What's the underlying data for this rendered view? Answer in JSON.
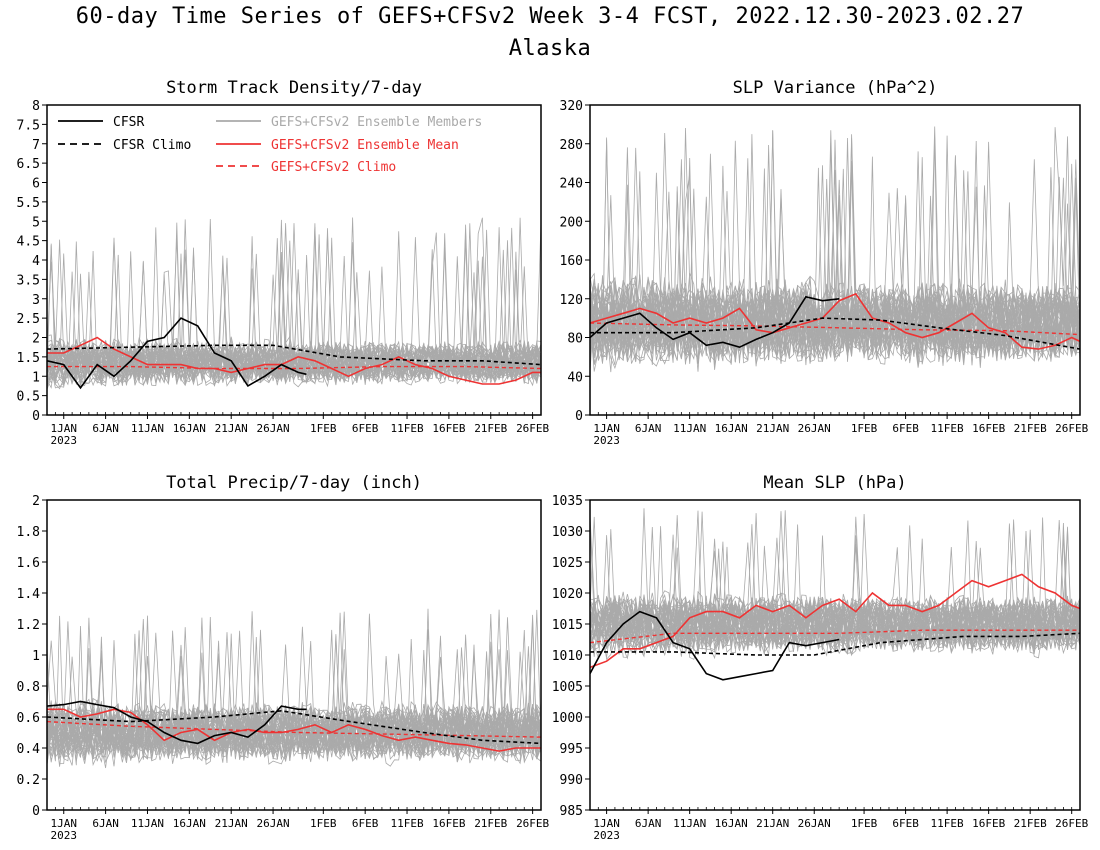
{
  "figure": {
    "title_line1": "60-day Time Series of GEFS+CFSv2 Week 3-4 FCST, 2022.12.30-2023.02.27",
    "title_line2": "Alaska"
  },
  "colors": {
    "cfsr": "#000000",
    "members": "#aaaaaa",
    "ens_mean": "#ee3333",
    "model_climo": "#ee3333"
  },
  "legend": {
    "items": [
      {
        "label": "CFSR",
        "style": "solid",
        "color": "#000000"
      },
      {
        "label": "CFSR Climo",
        "style": "dashed",
        "color": "#000000"
      },
      {
        "label": "GEFS+CFSv2 Ensemble Members",
        "style": "solid",
        "color": "#aaaaaa"
      },
      {
        "label": "GEFS+CFSv2 Ensemble Mean",
        "style": "solid",
        "color": "#ee3333"
      },
      {
        "label": "GEFS+CFSv2 Climo",
        "style": "dashed",
        "color": "#ee3333"
      }
    ],
    "placement": "top-left of first panel"
  },
  "chart_data": [
    {
      "type": "line",
      "title": "Storm Track Density/7-day",
      "xlabel": "",
      "ylabel": "",
      "x_tick_labels": [
        "1JAN",
        "6JAN",
        "11JAN",
        "16JAN",
        "21JAN",
        "26JAN",
        "1FEB",
        "6FEB",
        "11FEB",
        "16FEB",
        "21FEB",
        "26FEB"
      ],
      "x_tick_days": [
        2,
        7,
        12,
        17,
        22,
        27,
        33,
        38,
        43,
        48,
        53,
        58
      ],
      "year_label": "2023",
      "xlim": [
        0,
        59
      ],
      "ylim": [
        0,
        8
      ],
      "y_ticks": [
        0,
        0.5,
        1,
        1.5,
        2,
        2.5,
        3,
        3.5,
        4,
        4.5,
        5,
        5.5,
        6,
        6.5,
        7,
        7.5,
        8
      ],
      "y_tick_labels": [
        "0",
        "0.5",
        "1",
        "1.5",
        "2",
        "2.5",
        "3",
        "3.5",
        "4",
        "4.5",
        "5",
        "5.5",
        "6",
        "6.5",
        "7",
        "7.5",
        "8"
      ],
      "members": {
        "count": 40,
        "center": 1.35,
        "spread": 0.6,
        "peak": 5.1,
        "floor": 0,
        "seed": 11
      },
      "series": [
        {
          "name": "CFSR",
          "x": [
            0,
            2,
            4,
            6,
            8,
            10,
            12,
            14,
            16,
            18,
            20,
            22,
            24,
            26,
            28,
            30,
            31
          ],
          "values": [
            1.4,
            1.3,
            0.7,
            1.3,
            1.0,
            1.4,
            1.9,
            2.0,
            2.5,
            2.3,
            1.6,
            1.4,
            0.75,
            1.0,
            1.3,
            1.1,
            1.05
          ]
        },
        {
          "name": "CFSR Climo",
          "x": [
            0,
            10,
            20,
            27,
            35,
            45,
            52,
            59
          ],
          "values": [
            1.7,
            1.75,
            1.8,
            1.8,
            1.5,
            1.4,
            1.4,
            1.3
          ]
        },
        {
          "name": "GEFS+CFSv2 Ensemble Mean",
          "x": [
            0,
            2,
            4,
            6,
            8,
            10,
            12,
            14,
            16,
            18,
            20,
            22,
            24,
            26,
            28,
            30,
            32,
            34,
            36,
            38,
            40,
            42,
            44,
            46,
            48,
            50,
            52,
            54,
            56,
            58,
            59
          ],
          "values": [
            1.6,
            1.6,
            1.8,
            2.0,
            1.7,
            1.5,
            1.3,
            1.3,
            1.3,
            1.2,
            1.2,
            1.1,
            1.2,
            1.3,
            1.3,
            1.5,
            1.4,
            1.2,
            1.0,
            1.2,
            1.3,
            1.5,
            1.3,
            1.2,
            1.0,
            0.9,
            0.8,
            0.8,
            0.9,
            1.1,
            1.1
          ]
        },
        {
          "name": "GEFS+CFSv2 Climo",
          "x": [
            0,
            10,
            20,
            30,
            40,
            50,
            59
          ],
          "values": [
            1.25,
            1.25,
            1.2,
            1.2,
            1.25,
            1.25,
            1.2
          ]
        }
      ]
    },
    {
      "type": "line",
      "title": "SLP Variance (hPa^2)",
      "xlabel": "",
      "ylabel": "",
      "x_tick_labels": [
        "1JAN",
        "6JAN",
        "11JAN",
        "16JAN",
        "21JAN",
        "26JAN",
        "1FEB",
        "6FEB",
        "11FEB",
        "16FEB",
        "21FEB",
        "26FEB"
      ],
      "x_tick_days": [
        2,
        7,
        12,
        17,
        22,
        27,
        33,
        38,
        43,
        48,
        53,
        58
      ],
      "year_label": "2023",
      "xlim": [
        0,
        59
      ],
      "ylim": [
        0,
        320
      ],
      "y_ticks": [
        0,
        40,
        80,
        120,
        160,
        200,
        240,
        280,
        320
      ],
      "y_tick_labels": [
        "0",
        "40",
        "80",
        "120",
        "160",
        "200",
        "240",
        "280",
        "320"
      ],
      "members": {
        "count": 40,
        "center": 95,
        "spread": 45,
        "peak": 300,
        "floor": 20,
        "seed": 23
      },
      "series": [
        {
          "name": "CFSR",
          "x": [
            0,
            2,
            4,
            6,
            8,
            10,
            12,
            14,
            16,
            18,
            20,
            22,
            24,
            26,
            28,
            30
          ],
          "values": [
            80,
            95,
            100,
            105,
            90,
            78,
            85,
            72,
            75,
            70,
            78,
            85,
            95,
            122,
            118,
            120
          ]
        },
        {
          "name": "CFSR Climo",
          "x": [
            0,
            10,
            20,
            28,
            35,
            42,
            50,
            59
          ],
          "values": [
            85,
            85,
            90,
            100,
            98,
            90,
            82,
            68
          ]
        },
        {
          "name": "GEFS+CFSv2 Ensemble Mean",
          "x": [
            0,
            2,
            4,
            6,
            8,
            10,
            12,
            14,
            16,
            18,
            20,
            22,
            24,
            26,
            28,
            30,
            32,
            34,
            36,
            38,
            40,
            42,
            44,
            46,
            48,
            50,
            52,
            54,
            56,
            58,
            59
          ],
          "values": [
            95,
            100,
            105,
            110,
            105,
            95,
            100,
            95,
            100,
            110,
            88,
            85,
            90,
            95,
            100,
            118,
            125,
            100,
            95,
            85,
            80,
            85,
            95,
            105,
            90,
            85,
            70,
            68,
            72,
            80,
            76
          ]
        },
        {
          "name": "GEFS+CFSv2 Climo",
          "x": [
            0,
            10,
            20,
            30,
            40,
            50,
            59
          ],
          "values": [
            95,
            93,
            92,
            90,
            88,
            87,
            83
          ]
        }
      ]
    },
    {
      "type": "line",
      "title": "Total Precip/7-day (inch)",
      "xlabel": "",
      "ylabel": "",
      "x_tick_labels": [
        "1JAN",
        "6JAN",
        "11JAN",
        "16JAN",
        "21JAN",
        "26JAN",
        "1FEB",
        "6FEB",
        "11FEB",
        "16FEB",
        "21FEB",
        "26FEB"
      ],
      "x_tick_days": [
        2,
        7,
        12,
        17,
        22,
        27,
        33,
        38,
        43,
        48,
        53,
        58
      ],
      "year_label": "2023",
      "xlim": [
        0,
        59
      ],
      "ylim": [
        0,
        2
      ],
      "y_ticks": [
        0,
        0.2,
        0.4,
        0.6,
        0.8,
        1,
        1.2,
        1.4,
        1.6,
        1.8,
        2
      ],
      "y_tick_labels": [
        "0",
        "0.2",
        "0.4",
        "0.6",
        "0.8",
        "1",
        "1.2",
        "1.4",
        "1.6",
        "1.8",
        "2"
      ],
      "members": {
        "count": 40,
        "center": 0.5,
        "spread": 0.2,
        "peak": 1.3,
        "floor": 0.05,
        "seed": 37
      },
      "series": [
        {
          "name": "CFSR",
          "x": [
            0,
            2,
            4,
            6,
            8,
            10,
            12,
            14,
            16,
            18,
            20,
            22,
            24,
            26,
            28,
            30,
            31
          ],
          "values": [
            0.67,
            0.68,
            0.7,
            0.68,
            0.66,
            0.6,
            0.57,
            0.5,
            0.45,
            0.43,
            0.48,
            0.5,
            0.47,
            0.55,
            0.67,
            0.65,
            0.65
          ]
        },
        {
          "name": "CFSR Climo",
          "x": [
            0,
            10,
            20,
            28,
            35,
            45,
            52,
            59
          ],
          "values": [
            0.6,
            0.57,
            0.6,
            0.64,
            0.58,
            0.5,
            0.45,
            0.43
          ]
        },
        {
          "name": "GEFS+CFSv2 Ensemble Mean",
          "x": [
            0,
            2,
            4,
            6,
            8,
            10,
            12,
            14,
            16,
            18,
            20,
            22,
            24,
            26,
            28,
            30,
            32,
            34,
            36,
            38,
            40,
            42,
            44,
            46,
            48,
            50,
            52,
            54,
            56,
            58,
            59
          ],
          "values": [
            0.65,
            0.65,
            0.6,
            0.62,
            0.65,
            0.63,
            0.55,
            0.45,
            0.5,
            0.52,
            0.45,
            0.5,
            0.52,
            0.5,
            0.5,
            0.52,
            0.55,
            0.5,
            0.55,
            0.52,
            0.48,
            0.45,
            0.47,
            0.45,
            0.43,
            0.42,
            0.4,
            0.38,
            0.4,
            0.4,
            0.4
          ]
        },
        {
          "name": "GEFS+CFSv2 Climo",
          "x": [
            0,
            10,
            20,
            30,
            40,
            50,
            59
          ],
          "values": [
            0.57,
            0.54,
            0.52,
            0.5,
            0.49,
            0.48,
            0.47
          ]
        }
      ]
    },
    {
      "type": "line",
      "title": "Mean SLP (hPa)",
      "xlabel": "",
      "ylabel": "",
      "x_tick_labels": [
        "1JAN",
        "6JAN",
        "11JAN",
        "16JAN",
        "21JAN",
        "26JAN",
        "1FEB",
        "6FEB",
        "11FEB",
        "16FEB",
        "21FEB",
        "26FEB"
      ],
      "x_tick_days": [
        2,
        7,
        12,
        17,
        22,
        27,
        33,
        38,
        43,
        48,
        53,
        58
      ],
      "year_label": "2023",
      "xlim": [
        0,
        59
      ],
      "ylim": [
        985,
        1035
      ],
      "y_ticks": [
        985,
        990,
        995,
        1000,
        1005,
        1010,
        1015,
        1020,
        1025,
        1030,
        1035
      ],
      "y_tick_labels": [
        "985",
        "990",
        "995",
        "1000",
        "1005",
        "1010",
        "1015",
        "1020",
        "1025",
        "1030",
        "1035"
      ],
      "members": {
        "count": 40,
        "center": 1015,
        "spread": 5,
        "peak": 1034,
        "floor": 996,
        "seed": 53
      },
      "series": [
        {
          "name": "CFSR",
          "x": [
            0,
            2,
            4,
            6,
            8,
            10,
            12,
            14,
            16,
            18,
            20,
            22,
            24,
            26,
            28,
            30
          ],
          "values": [
            1007,
            1012,
            1015,
            1017,
            1016,
            1012,
            1011,
            1007,
            1006,
            1006.5,
            1007,
            1007.5,
            1012,
            1011.5,
            1012,
            1012.5
          ]
        },
        {
          "name": "CFSR Climo",
          "x": [
            0,
            10,
            20,
            27,
            35,
            45,
            52,
            59
          ],
          "values": [
            1010.5,
            1010.5,
            1010,
            1010,
            1012,
            1013,
            1013,
            1013.5
          ]
        },
        {
          "name": "GEFS+CFSv2 Ensemble Mean",
          "x": [
            0,
            2,
            4,
            6,
            8,
            10,
            12,
            14,
            16,
            18,
            20,
            22,
            24,
            26,
            28,
            30,
            32,
            34,
            36,
            38,
            40,
            42,
            44,
            46,
            48,
            50,
            52,
            54,
            56,
            58,
            59
          ],
          "values": [
            1008,
            1009,
            1011,
            1011,
            1012,
            1013,
            1016,
            1017,
            1017,
            1016,
            1018,
            1017,
            1018,
            1016,
            1018,
            1019,
            1017,
            1020,
            1018,
            1018,
            1017,
            1018,
            1020,
            1022,
            1021,
            1022,
            1023,
            1021,
            1020,
            1018,
            1017.5
          ]
        },
        {
          "name": "GEFS+CFSv2 Climo",
          "x": [
            0,
            10,
            20,
            30,
            40,
            50,
            59
          ],
          "values": [
            1012,
            1013.5,
            1013.5,
            1013.5,
            1014,
            1014,
            1014
          ]
        }
      ]
    }
  ]
}
